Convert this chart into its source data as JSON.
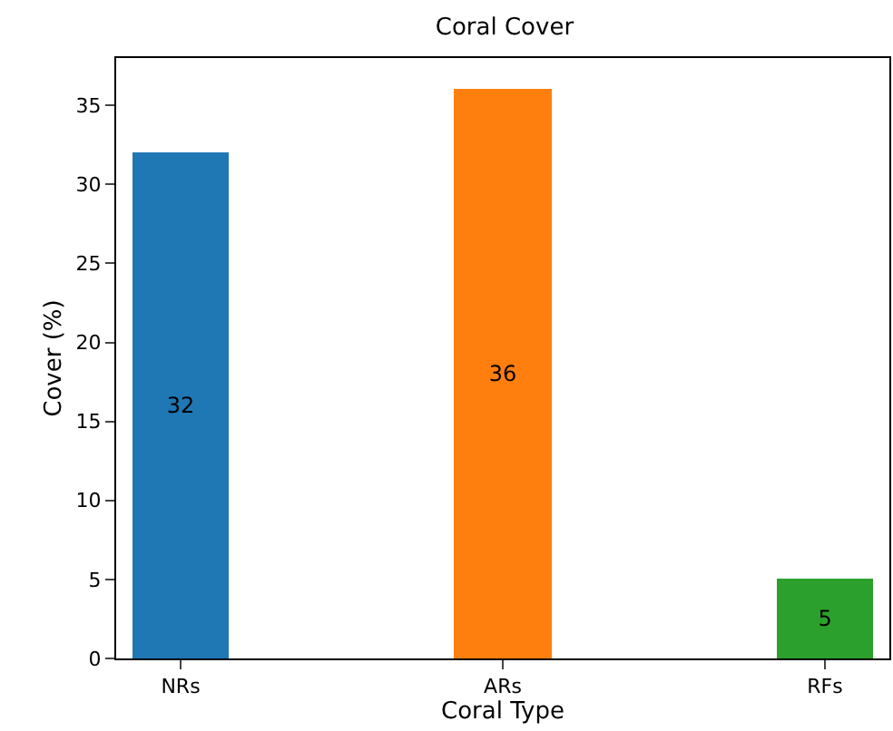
{
  "chart_data": {
    "type": "bar",
    "title": "Coral Cover",
    "xlabel": "Coral Type",
    "ylabel": "Cover (%)",
    "categories": [
      "NRs",
      "ARs",
      "RFs"
    ],
    "values": [
      32,
      36,
      5
    ],
    "colors": [
      "#1f77b4",
      "#ff7f0e",
      "#2ca02c"
    ],
    "ylim": [
      0,
      38
    ],
    "yticks": [
      0,
      5,
      10,
      15,
      20,
      25,
      30,
      35
    ],
    "data_labels": true
  }
}
